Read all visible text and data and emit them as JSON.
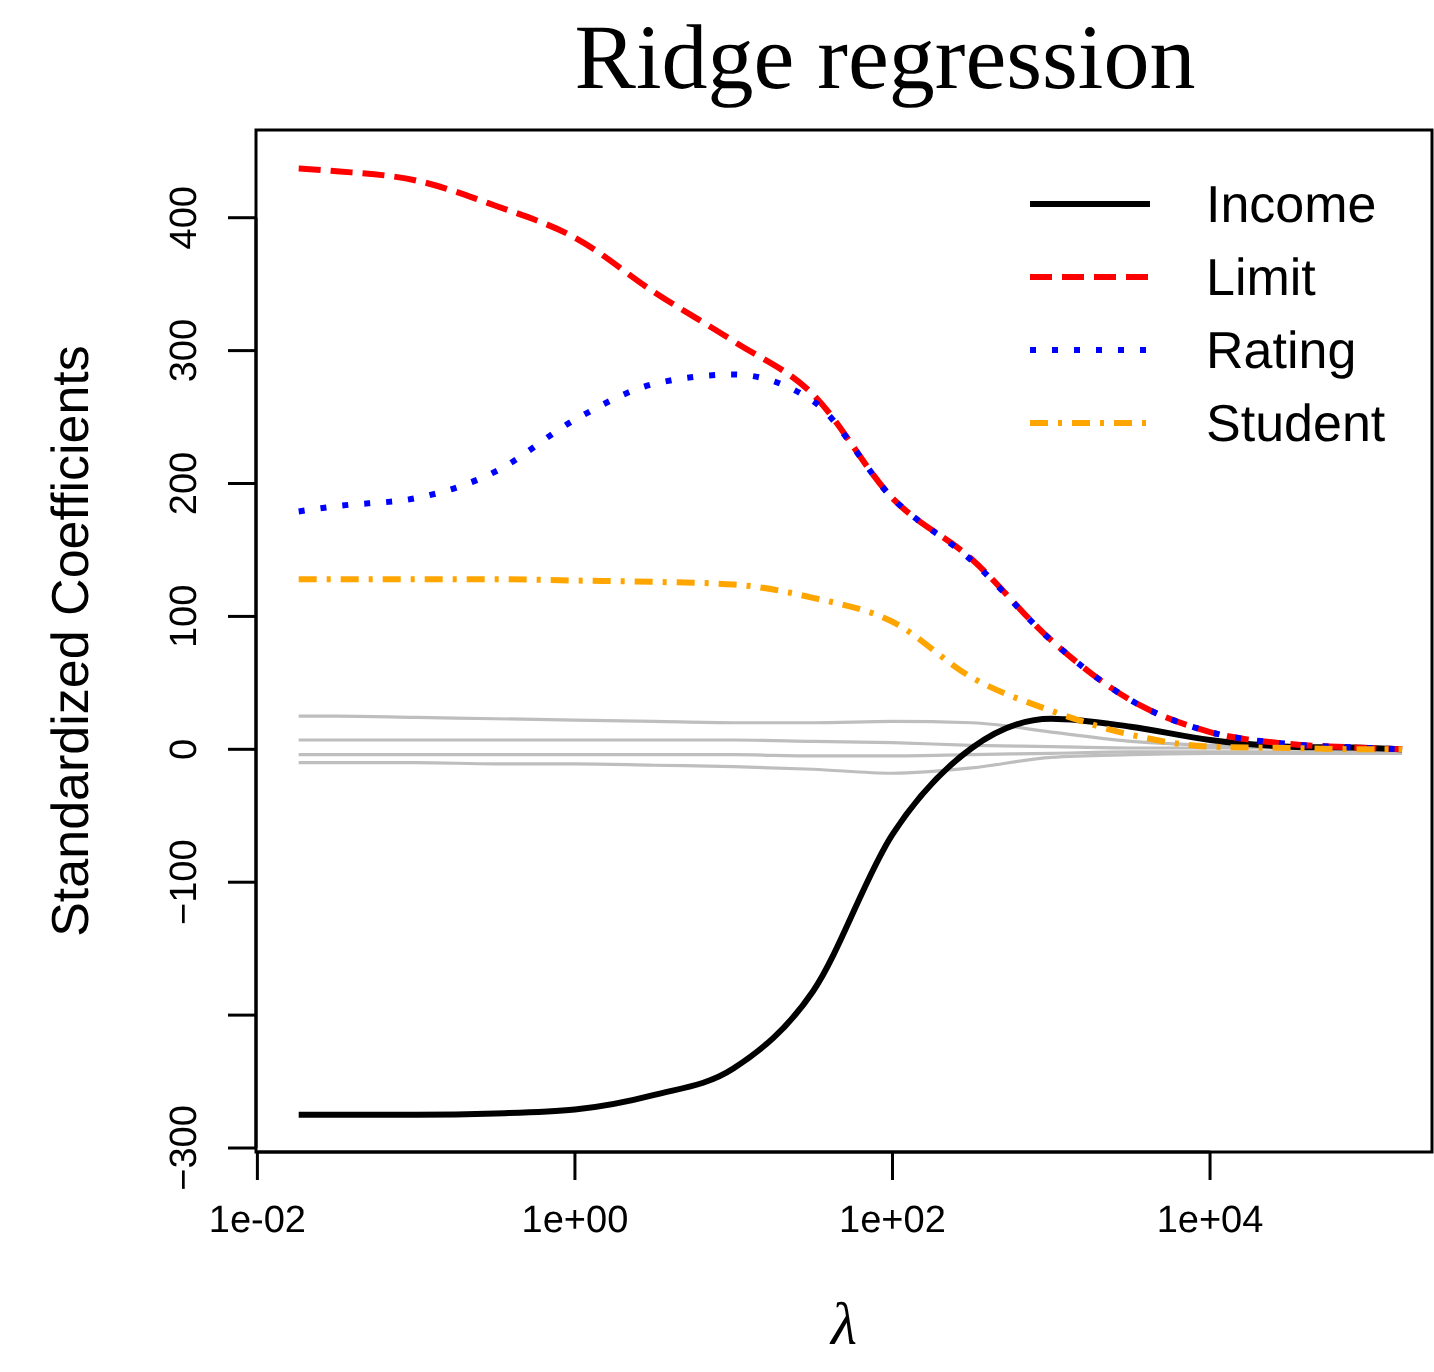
{
  "chart_data": {
    "type": "line",
    "title": "Ridge regression",
    "xlabel": "λ",
    "ylabel": "Standardized Coefficients",
    "x": [
      0.0182,
      0.0316,
      0.1,
      0.316,
      1,
      3.16,
      10,
      31.6,
      100,
      316,
      1000,
      3162,
      10000,
      31623,
      100000,
      162000
    ],
    "log": "x",
    "xlim": [
      0.0098,
      250000
    ],
    "xticks": [
      {
        "value": 0.01,
        "label": "1e-02"
      },
      {
        "value": 1,
        "label": "1e+00"
      },
      {
        "value": 100,
        "label": "1e+02"
      },
      {
        "value": 10000,
        "label": "1e+04"
      }
    ],
    "ylim": [
      -303,
      466
    ],
    "yticks": [
      {
        "value": -300,
        "label": "−300"
      },
      {
        "value": -200,
        "label": null
      },
      {
        "value": -100,
        "label": "−100"
      },
      0,
      100,
      200,
      300,
      400
    ],
    "grid": false,
    "legend": "top right",
    "marker": "none",
    "series": [
      {
        "color": "#bebebe",
        "line_style": "solid",
        "values": [
          25,
          25,
          24,
          23,
          22,
          21,
          20,
          20,
          21,
          20,
          13,
          6,
          3,
          2,
          1,
          1
        ]
      },
      {
        "color": "#bebebe",
        "line_style": "solid",
        "values": [
          7,
          7,
          7,
          7,
          7,
          7,
          7,
          6,
          5,
          3,
          2,
          1,
          1,
          1,
          0,
          0
        ]
      },
      {
        "color": "#bebebe",
        "line_style": "solid",
        "values": [
          -4,
          -4,
          -4,
          -4,
          -4,
          -4,
          -4,
          -5,
          -5,
          -4,
          -3,
          -2,
          -2,
          -2,
          -2,
          -2
        ]
      },
      {
        "color": "#bebebe",
        "line_style": "solid",
        "values": [
          -10,
          -10,
          -10,
          -11,
          -11,
          -12,
          -13,
          -15,
          -18,
          -14,
          -6,
          -4,
          -3,
          -3,
          -3,
          -3
        ]
      },
      {
        "name": "Income",
        "color": "#000000",
        "line_style": "solid",
        "values": [
          -275,
          -275,
          -275,
          -274,
          -271,
          -260,
          -240,
          -182,
          -64,
          1,
          23,
          17,
          7,
          2,
          1,
          0
        ]
      },
      {
        "name": "Limit",
        "color": "#ff0000",
        "line_style": "dashed",
        "values": [
          437,
          435,
          428,
          409,
          385,
          344,
          307,
          267,
          189,
          143,
          82,
          37,
          13,
          4,
          1,
          0
        ]
      },
      {
        "name": "Rating",
        "color": "#0000ff",
        "line_style": "dotted",
        "values": [
          179,
          183,
          189,
          209,
          248,
          275,
          282,
          262,
          189,
          142,
          82,
          37,
          13,
          4,
          1,
          0
        ]
      },
      {
        "name": "Student",
        "color": "#ffa500",
        "line_style": "dashdot",
        "values": [
          128,
          128,
          128,
          128,
          127,
          126,
          124,
          114,
          96,
          54,
          29,
          11,
          2,
          1,
          0,
          0
        ]
      }
    ]
  }
}
